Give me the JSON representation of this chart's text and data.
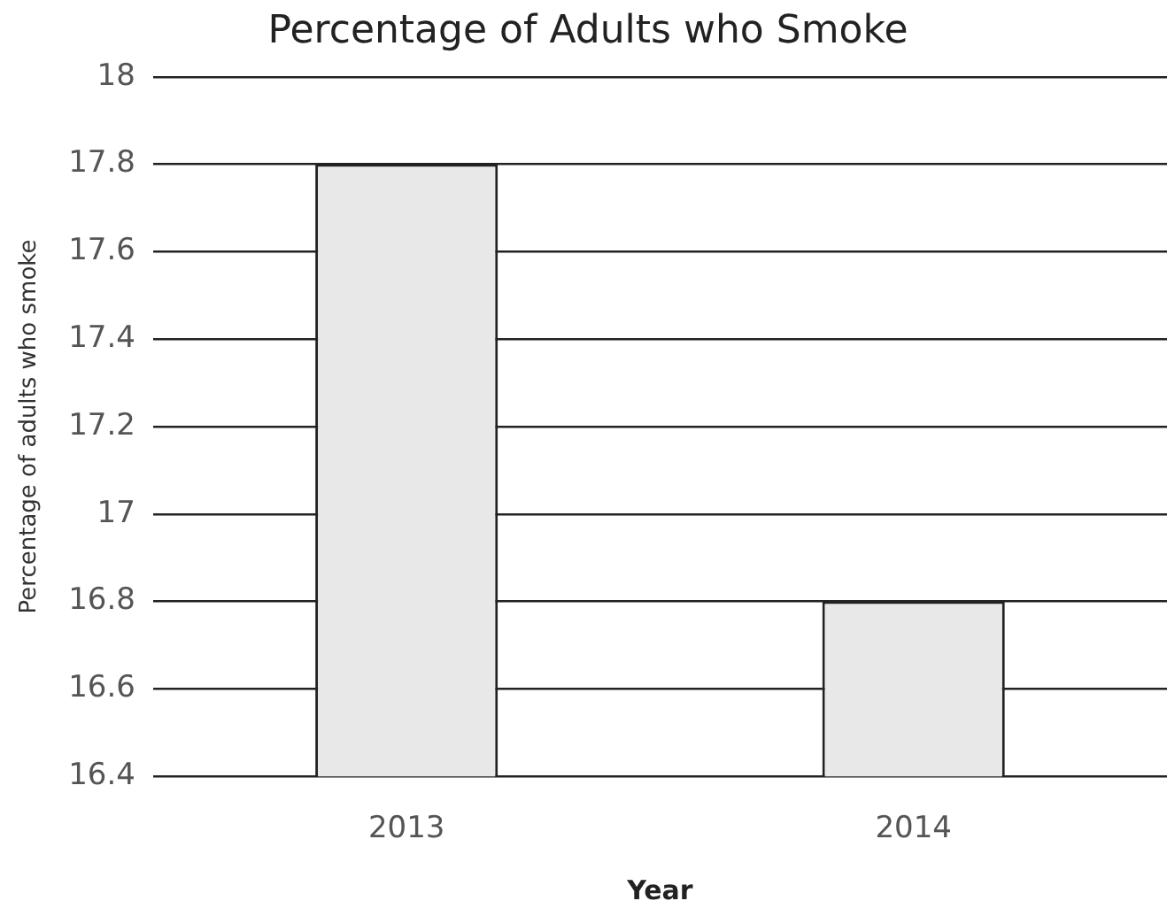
{
  "chart_data": {
    "type": "bar",
    "title": "Percentage of Adults who Smoke",
    "xlabel": "Year",
    "ylabel": "Percentage of adults who smoke",
    "categories": [
      "2013",
      "2014"
    ],
    "values": [
      17.8,
      16.8
    ],
    "color": "#e8e8e8",
    "ylim": [
      16.4,
      18
    ],
    "yticks": [
      16.4,
      16.6,
      16.8,
      17,
      17.2,
      17.4,
      17.6,
      17.8,
      18
    ],
    "grid": "y"
  }
}
